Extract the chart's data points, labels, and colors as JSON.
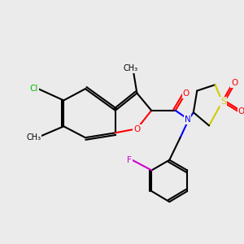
{
  "bg_color": "#ebebeb",
  "bond_color": "#000000",
  "bond_width": 1.5,
  "atom_colors": {
    "O": "#ff0000",
    "N": "#0000ff",
    "Cl": "#00bb00",
    "F": "#cc00cc",
    "S": "#cccc00",
    "C": "#000000"
  },
  "font_size": 7.5
}
